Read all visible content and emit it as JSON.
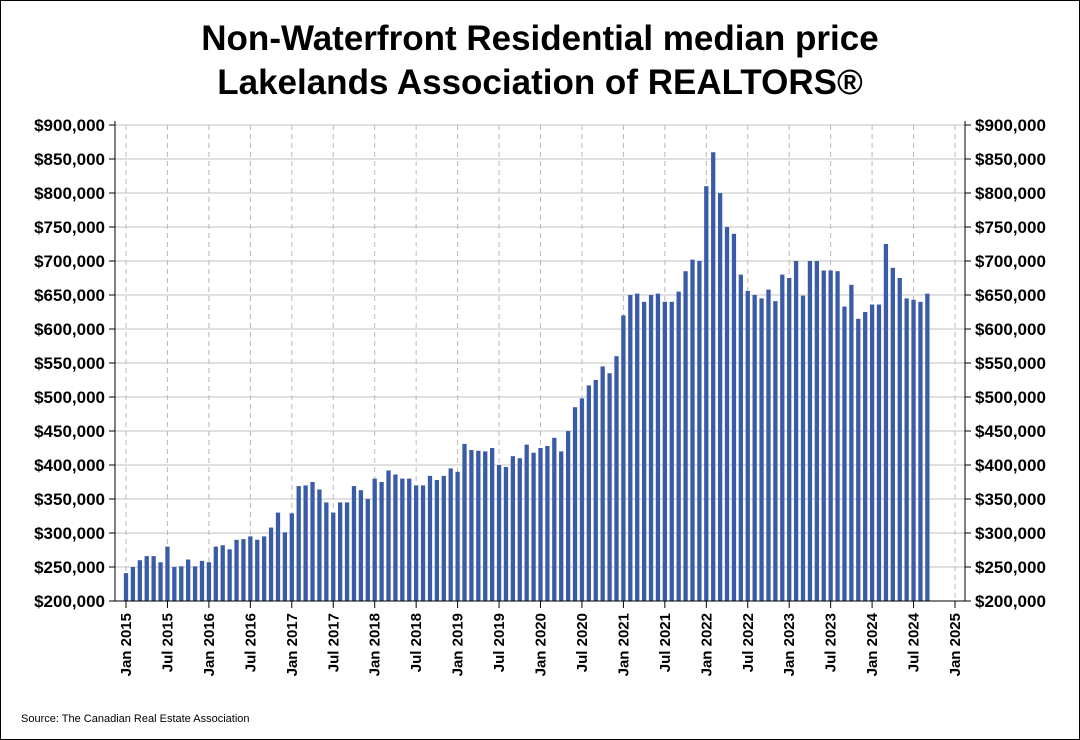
{
  "chart_data": {
    "type": "bar",
    "title": "Non-Waterfront Residential median price",
    "subtitle": "Lakelands Association of REALTORS®",
    "source": "Source: The Canadian Real Estate Association",
    "xlabel": "",
    "ylabel": "",
    "ylim": [
      200000,
      900000
    ],
    "y_ticks": [
      "$200,000",
      "$250,000",
      "$300,000",
      "$350,000",
      "$400,000",
      "$450,000",
      "$500,000",
      "$550,000",
      "$600,000",
      "$650,000",
      "$700,000",
      "$750,000",
      "$800,000",
      "$850,000",
      "$900,000"
    ],
    "x_ticks": [
      "Jan 2015",
      "Jul 2015",
      "Jan 2016",
      "Jul 2016",
      "Jan 2017",
      "Jul 2017",
      "Jan 2018",
      "Jul 2018",
      "Jan 2019",
      "Jul 2019",
      "Jan 2020",
      "Jul 2020",
      "Jan 2021",
      "Jul 2021",
      "Jan 2022",
      "Jul 2022",
      "Jan 2023",
      "Jul 2023",
      "Jan 2024",
      "Jul 2024",
      "Jan 2025"
    ],
    "start_month": "2015-01",
    "values": [
      241000,
      250000,
      260000,
      266000,
      266000,
      257000,
      280000,
      250000,
      251000,
      261000,
      251000,
      259000,
      257000,
      280000,
      282000,
      276000,
      290000,
      291000,
      295000,
      290000,
      295000,
      308000,
      330000,
      301000,
      329000,
      369000,
      370000,
      375000,
      364000,
      345000,
      330000,
      345000,
      345000,
      369000,
      363000,
      350000,
      380000,
      375000,
      392000,
      386000,
      380000,
      380000,
      370000,
      370000,
      384000,
      378000,
      384000,
      395000,
      390000,
      431000,
      422000,
      421000,
      420000,
      425000,
      400000,
      397000,
      413000,
      410000,
      430000,
      418000,
      425000,
      428000,
      440000,
      420000,
      450000,
      485000,
      498000,
      517000,
      525000,
      545000,
      535000,
      560000,
      620000,
      650000,
      652000,
      640000,
      650000,
      652000,
      640000,
      640000,
      655000,
      685000,
      702000,
      700000,
      810000,
      860000,
      800000,
      750000,
      740000,
      680000,
      656000,
      650000,
      645000,
      658000,
      641000,
      680000,
      675000,
      700000,
      649000,
      700000,
      700000,
      686000,
      686000,
      685000,
      633000,
      665000,
      615000,
      625000,
      636000,
      636000,
      725000,
      690000,
      675000,
      645000,
      643000,
      640000,
      652000
    ],
    "bar_color": "#3a5ba8",
    "grid": true,
    "legend": "none"
  }
}
